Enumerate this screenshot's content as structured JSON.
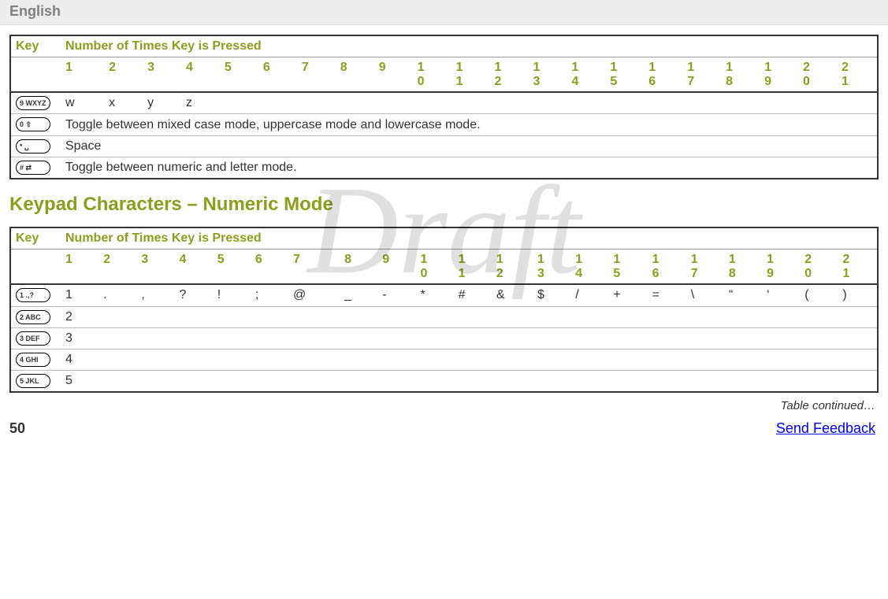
{
  "header": {
    "language": "English"
  },
  "watermark": "Draft",
  "table1": {
    "header_key": "Key",
    "header_times": "Number of Times Key is Pressed",
    "columns": [
      "1",
      "2",
      "3",
      "4",
      "5",
      "6",
      "7",
      "8",
      "9",
      "10",
      "11",
      "12",
      "13",
      "14",
      "15",
      "16",
      "17",
      "18",
      "19",
      "20",
      "21"
    ],
    "rows": [
      {
        "key_label": "9 WXYZ",
        "cells": [
          "w",
          "x",
          "y",
          "z",
          "",
          "",
          "",
          "",
          "",
          "",
          "",
          "",
          "",
          "",
          "",
          "",
          "",
          "",
          "",
          "",
          ""
        ]
      },
      {
        "key_label": "0 ⇧",
        "span_text": "Toggle between mixed case mode, uppercase mode and lowercase mode."
      },
      {
        "key_label": "* ␣",
        "span_text": "Space"
      },
      {
        "key_label": "# ⇄",
        "span_text": "Toggle between numeric and letter mode."
      }
    ]
  },
  "section_title": "Keypad Characters – Numeric Mode",
  "table2": {
    "header_key": "Key",
    "header_times": "Number of Times Key is Pressed",
    "columns": [
      "1",
      "2",
      "3",
      "4",
      "5",
      "6",
      "7",
      "8",
      "9",
      "10",
      "11",
      "12",
      "13",
      "14",
      "15",
      "16",
      "17",
      "18",
      "19",
      "20",
      "21"
    ],
    "rows": [
      {
        "key_label": "1 .,?",
        "cells": [
          "1",
          ".",
          ",",
          "?",
          "!",
          ";",
          "@",
          "_",
          "-",
          "*",
          "#",
          "&",
          "$",
          "/",
          "+",
          "=",
          "\\",
          "“",
          "‘",
          "(",
          ")"
        ]
      },
      {
        "key_label": "2 ABC",
        "cells": [
          "2",
          "",
          "",
          "",
          "",
          "",
          "",
          "",
          "",
          "",
          "",
          "",
          "",
          "",
          "",
          "",
          "",
          "",
          "",
          "",
          ""
        ]
      },
      {
        "key_label": "3 DEF",
        "cells": [
          "3",
          "",
          "",
          "",
          "",
          "",
          "",
          "",
          "",
          "",
          "",
          "",
          "",
          "",
          "",
          "",
          "",
          "",
          "",
          "",
          ""
        ]
      },
      {
        "key_label": "4 GHI",
        "cells": [
          "4",
          "",
          "",
          "",
          "",
          "",
          "",
          "",
          "",
          "",
          "",
          "",
          "",
          "",
          "",
          "",
          "",
          "",
          "",
          "",
          ""
        ]
      },
      {
        "key_label": "5 JKL",
        "cells": [
          "5",
          "",
          "",
          "",
          "",
          "",
          "",
          "",
          "",
          "",
          "",
          "",
          "",
          "",
          "",
          "",
          "",
          "",
          "",
          "",
          ""
        ]
      }
    ]
  },
  "table_continued": "Table continued…",
  "footer": {
    "page": "50",
    "feedback": "Send Feedback"
  },
  "colors": {
    "olive": "#8b9e1e",
    "header_bg": "#ededed",
    "header_text": "#808080",
    "link": "#0000ee"
  }
}
